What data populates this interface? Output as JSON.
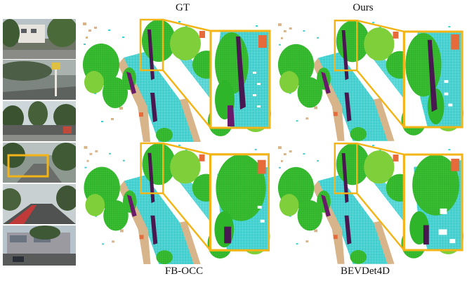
{
  "figure": {
    "labels": {
      "gt": "GT",
      "ours": "Ours",
      "fbocc": "FB-OCC",
      "bevdet4d": "BEVDet4D"
    },
    "colors": {
      "vegetation": "#2fb52a",
      "vegetation_light": "#7fcf3a",
      "drivable_surface": "#3fcfcf",
      "sidewalk": "#d8b48a",
      "manmade": "#e66a3a",
      "terrain": "#6a1a6a",
      "highlight": "#f2b416",
      "trunk": "#4a1850"
    },
    "camera_views": [
      "camera-front-left",
      "camera-front",
      "camera-front-right",
      "camera-back-left",
      "camera-back",
      "camera-back-right"
    ]
  }
}
